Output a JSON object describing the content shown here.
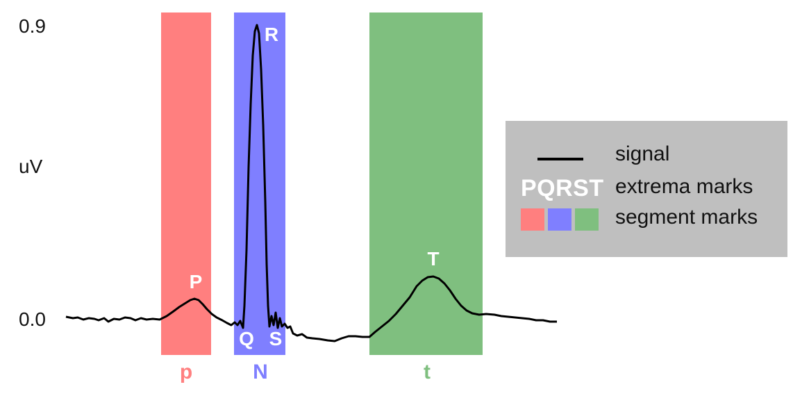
{
  "axis": {
    "y_top_label": "0.9",
    "y_unit_label": "uV",
    "y_zero_label": "0.0"
  },
  "colors": {
    "p_segment": "#ff7f7f",
    "n_segment": "#7f7fff",
    "t_segment": "#7fbf7f",
    "signal": "#000000",
    "legend_bg": "#bfbfbf"
  },
  "segments": [
    {
      "key": "p",
      "label": "p",
      "color": "#ff7f7f",
      "label_color": "#ff8080"
    },
    {
      "key": "n",
      "label": "N",
      "color": "#7f7fff",
      "label_color": "#7f7fff"
    },
    {
      "key": "t",
      "label": "t",
      "color": "#7fbf7f",
      "label_color": "#7fbf7f"
    }
  ],
  "extrema": [
    {
      "key": "P",
      "label": "P"
    },
    {
      "key": "Q",
      "label": "Q"
    },
    {
      "key": "R",
      "label": "R"
    },
    {
      "key": "S",
      "label": "S"
    },
    {
      "key": "T",
      "label": "T"
    }
  ],
  "legend": {
    "signal_label": "signal",
    "extrema_symbol": "PQRST",
    "extrema_label": "extrema marks",
    "segment_label": "segment marks",
    "swatch_colors": [
      "#ff7f7f",
      "#7f7fff",
      "#7fbf7f"
    ]
  }
}
